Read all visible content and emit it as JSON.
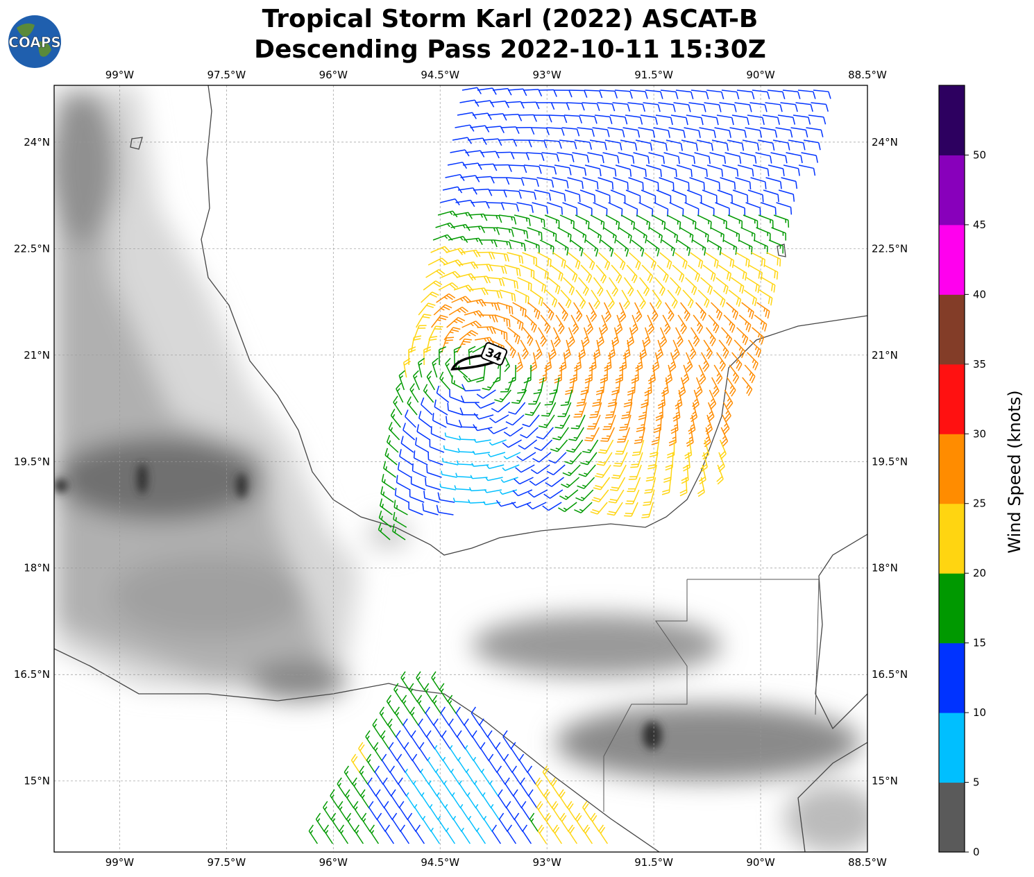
{
  "title": {
    "line1": "Tropical Storm Karl (2022) ASCAT-B",
    "line2": "Descending Pass 2022-10-11 15:30Z"
  },
  "logo": {
    "text": "COAPS"
  },
  "map": {
    "lon_range": [
      -99.92,
      -88.5
    ],
    "lat_range": [
      14.0,
      24.8
    ],
    "lon_ticks": [
      {
        "v": -99,
        "label": "99°W"
      },
      {
        "v": -97.5,
        "label": "97.5°W"
      },
      {
        "v": -96,
        "label": "96°W"
      },
      {
        "v": -94.5,
        "label": "94.5°W"
      },
      {
        "v": -93,
        "label": "93°W"
      },
      {
        "v": -91.5,
        "label": "91.5°W"
      },
      {
        "v": -90,
        "label": "90°W"
      },
      {
        "v": -88.5,
        "label": "88.5°W"
      }
    ],
    "lat_ticks": [
      {
        "v": 24,
        "label": "24°N"
      },
      {
        "v": 22.5,
        "label": "22.5°N"
      },
      {
        "v": 21,
        "label": "21°N"
      },
      {
        "v": 19.5,
        "label": "19.5°N"
      },
      {
        "v": 18,
        "label": "18°N"
      },
      {
        "v": 16.5,
        "label": "16.5°N"
      },
      {
        "v": 15,
        "label": "15°N"
      }
    ],
    "gridlines": true,
    "storm_label": "34"
  },
  "colorbar": {
    "label": "Wind Speed (knots)",
    "bins": [
      {
        "from": 0,
        "to": 5,
        "color": "#5a5a5a"
      },
      {
        "from": 5,
        "to": 10,
        "color": "#00bfff"
      },
      {
        "from": 10,
        "to": 15,
        "color": "#0033ff"
      },
      {
        "from": 15,
        "to": 20,
        "color": "#009900"
      },
      {
        "from": 20,
        "to": 25,
        "color": "#ffd511"
      },
      {
        "from": 25,
        "to": 30,
        "color": "#ff8c00"
      },
      {
        "from": 30,
        "to": 35,
        "color": "#ff1111"
      },
      {
        "from": 35,
        "to": 40,
        "color": "#833d28"
      },
      {
        "from": 40,
        "to": 45,
        "color": "#ff00ee"
      },
      {
        "from": 45,
        "to": 50,
        "color": "#8800bb"
      },
      {
        "from": 50,
        "to": 55,
        "color": "#2d0060"
      }
    ],
    "ticks": [
      "0",
      "5",
      "10",
      "15",
      "20",
      "25",
      "30",
      "35",
      "40",
      "45",
      "50"
    ]
  }
}
